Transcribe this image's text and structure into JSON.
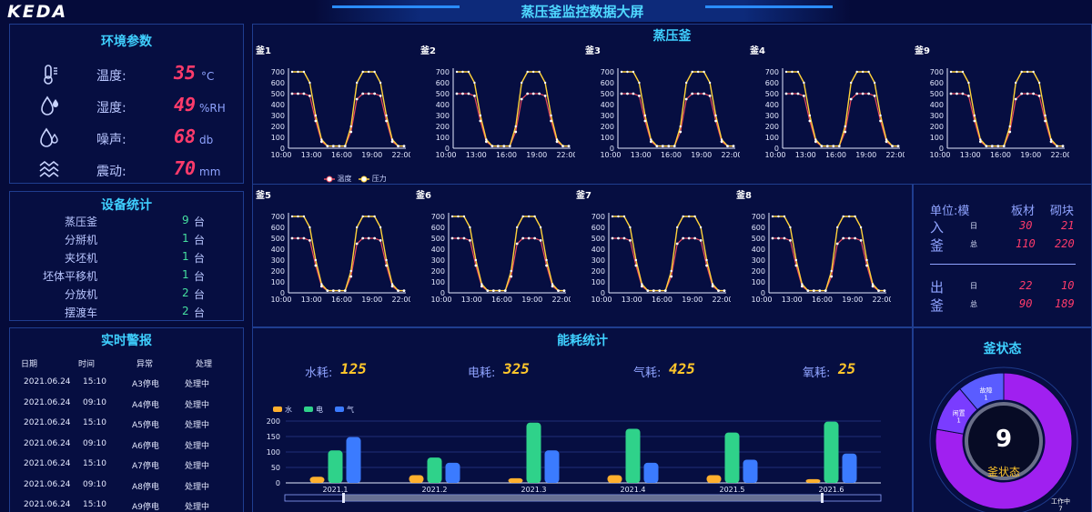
{
  "header": {
    "logo": "KEDA",
    "title": "蒸压釜监控数据大屏"
  },
  "env": {
    "title": "环境参数",
    "items": [
      {
        "label": "温度:",
        "value": "35",
        "unit": "°C",
        "icon": "thermometer-icon"
      },
      {
        "label": "湿度:",
        "value": "49",
        "unit": "%RH",
        "icon": "droplet-icon"
      },
      {
        "label": "噪声:",
        "value": "68",
        "unit": "db",
        "icon": "noise-icon"
      },
      {
        "label": "震动:",
        "value": "70",
        "unit": "mm",
        "icon": "vibration-icon"
      }
    ]
  },
  "equipment": {
    "title": "设备统计",
    "items": [
      {
        "name": "蒸压釜",
        "value": "9",
        "unit": "台"
      },
      {
        "name": "分掰机",
        "value": "1",
        "unit": "台"
      },
      {
        "name": "夹坯机",
        "value": "1",
        "unit": "台"
      },
      {
        "name": "坯体平移机",
        "value": "1",
        "unit": "台"
      },
      {
        "name": "分放机",
        "value": "2",
        "unit": "台"
      },
      {
        "name": "摆渡车",
        "value": "2",
        "unit": "台"
      }
    ]
  },
  "alarms": {
    "title": "实时警报",
    "headers": [
      "日期",
      "时间",
      "异常",
      "处理"
    ],
    "rows": [
      [
        "2021.06.24",
        "15:10",
        "A3停电",
        "处理中"
      ],
      [
        "2021.06.24",
        "09:10",
        "A4停电",
        "处理中"
      ],
      [
        "2021.06.24",
        "15:10",
        "A5停电",
        "处理中"
      ],
      [
        "2021.06.24",
        "09:10",
        "A6停电",
        "处理中"
      ],
      [
        "2021.06.24",
        "15:10",
        "A7停电",
        "处理中"
      ],
      [
        "2021.06.24",
        "09:10",
        "A8停电",
        "处理中"
      ],
      [
        "2021.06.24",
        "15:10",
        "A9停电",
        "处理中"
      ]
    ]
  },
  "autoclave": {
    "title": "蒸压釜",
    "legend": [
      "温度",
      "压力"
    ],
    "charts": [
      "釜1",
      "釜2",
      "釜3",
      "釜4",
      "釜9",
      "釜5",
      "釜6",
      "釜7",
      "釜8"
    ],
    "xticks": [
      "10:00",
      "13:00",
      "16:00",
      "19:00",
      "22:00"
    ],
    "yticks": [
      "0",
      "100",
      "200",
      "300",
      "400",
      "500",
      "600",
      "700"
    ]
  },
  "inout": {
    "unit_label": "单位:模",
    "col1": "板材",
    "col2": "砌块",
    "in_top": "入",
    "in_bot": "釜",
    "out_top": "出",
    "out_bot": "釜",
    "day": "日",
    "total": "总",
    "in_day": [
      "30",
      "21"
    ],
    "in_total": [
      "110",
      "220"
    ],
    "out_day": [
      "22",
      "10"
    ],
    "out_total": [
      "90",
      "189"
    ]
  },
  "energy": {
    "title": "能耗统计",
    "stats": [
      {
        "label": "水耗:",
        "value": "125"
      },
      {
        "label": "电耗:",
        "value": "325"
      },
      {
        "label": "气耗:",
        "value": "425"
      },
      {
        "label": "氧耗:",
        "value": "25"
      }
    ]
  },
  "status": {
    "title": "釜状态",
    "center_value": "9",
    "center_label": "釜状态",
    "segments": [
      {
        "name": "工作中",
        "value": 7,
        "color": "#a020f0"
      },
      {
        "name": "闲置",
        "value": 1,
        "color": "#7a3cff"
      },
      {
        "name": "故障",
        "value": 1,
        "color": "#5a5cff"
      }
    ]
  },
  "chart_data": {
    "type": "bar",
    "categories": [
      "2021.1",
      "2021.2",
      "2021.3",
      "2021.4",
      "2021.5",
      "2021.6"
    ],
    "series": [
      {
        "name": "水",
        "values": [
          20,
          25,
          15,
          25,
          25,
          12
        ],
        "color": "#ffb02e"
      },
      {
        "name": "电",
        "values": [
          105,
          82,
          195,
          175,
          163,
          198
        ],
        "color": "#2fd28a"
      },
      {
        "name": "气",
        "values": [
          148,
          65,
          105,
          65,
          75,
          95
        ],
        "color": "#3b7bff"
      }
    ],
    "yticks": [
      "0",
      "50",
      "100",
      "150",
      "200"
    ],
    "ylim": [
      0,
      200
    ],
    "legend": "top-left"
  }
}
